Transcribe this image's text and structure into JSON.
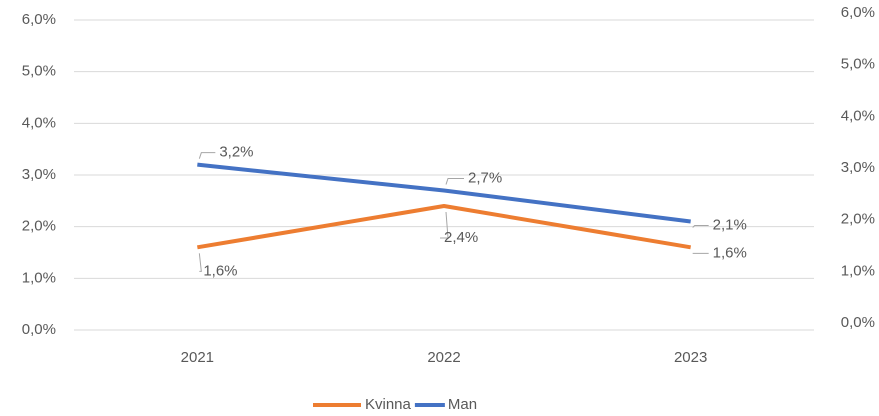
{
  "chart_data": {
    "type": "line",
    "categories": [
      "2021",
      "2022",
      "2023"
    ],
    "series": [
      {
        "name": "Kvinna",
        "color": "#ed7d31",
        "values": [
          1.6,
          2.4,
          1.6
        ],
        "value_labels": [
          "1,6%",
          "2,4%",
          "1,6%"
        ]
      },
      {
        "name": "Man",
        "color": "#4472c4",
        "values": [
          3.2,
          2.7,
          2.1
        ],
        "value_labels": [
          "3,2%",
          "2,7%",
          "2,1%"
        ]
      }
    ],
    "ylim": [
      0,
      6
    ],
    "yticks": [
      {
        "value": 0,
        "label": "0,0%"
      },
      {
        "value": 1,
        "label": "1,0%"
      },
      {
        "value": 2,
        "label": "2,0%"
      },
      {
        "value": 3,
        "label": "3,0%"
      },
      {
        "value": 4,
        "label": "4,0%"
      },
      {
        "value": 5,
        "label": "5,0%"
      },
      {
        "value": 6,
        "label": "6,0%"
      }
    ],
    "y2lim": [
      0,
      6
    ],
    "y2ticks": [
      {
        "value": 0,
        "label": "0,0%"
      },
      {
        "value": 1,
        "label": "1,0%"
      },
      {
        "value": 2,
        "label": "2,0%"
      },
      {
        "value": 3,
        "label": "3,0%"
      },
      {
        "value": 4,
        "label": "4,0%"
      },
      {
        "value": 5,
        "label": "5,0%"
      },
      {
        "value": 6,
        "label": "6,0%"
      }
    ],
    "grid": true,
    "legend": "bottom"
  }
}
